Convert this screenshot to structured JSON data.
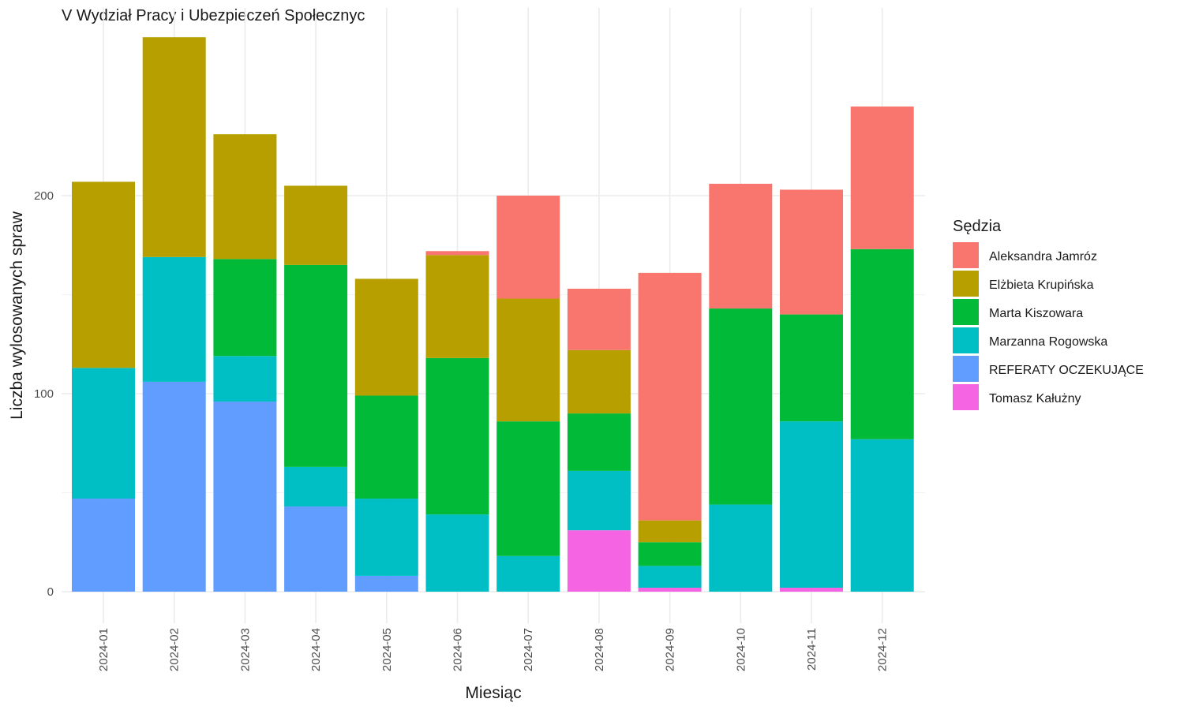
{
  "chart_data": {
    "type": "bar",
    "stacked": true,
    "title": "V Wydział Pracy i Ubezpieczeń Społecznyc",
    "xlabel": "Miesiąc",
    "ylabel": "Liczba wylosowanych spraw",
    "ylim": [
      0,
      290
    ],
    "yticks": [
      0,
      100,
      200
    ],
    "grid": true,
    "legend_position": "right",
    "legend_title": "Sędzia",
    "categories": [
      "2024-01",
      "2024-02",
      "2024-03",
      "2024-04",
      "2024-05",
      "2024-06",
      "2024-07",
      "2024-08",
      "2024-09",
      "2024-10",
      "2024-11",
      "2024-12"
    ],
    "series": [
      {
        "name": "Tomasz Kałużny",
        "color": "#F564E3",
        "values": [
          0,
          0,
          0,
          0,
          0,
          0,
          0,
          31,
          2,
          0,
          2,
          0
        ]
      },
      {
        "name": "REFERATY OCZEKUJĄCE",
        "color": "#619CFF",
        "values": [
          47,
          106,
          96,
          43,
          8,
          0,
          0,
          0,
          0,
          0,
          0,
          0
        ]
      },
      {
        "name": "Marzanna Rogowska",
        "color": "#00BFC4",
        "values": [
          66,
          63,
          23,
          20,
          39,
          39,
          18,
          30,
          11,
          44,
          84,
          77
        ]
      },
      {
        "name": "Marta Kiszowara",
        "color": "#00BA38",
        "values": [
          0,
          0,
          49,
          102,
          52,
          79,
          68,
          29,
          12,
          99,
          54,
          96
        ]
      },
      {
        "name": "Elżbieta Krupińska",
        "color": "#B79F00",
        "values": [
          94,
          111,
          63,
          40,
          59,
          52,
          62,
          32,
          11,
          0,
          0,
          0
        ]
      },
      {
        "name": "Aleksandra Jamróz",
        "color": "#F8766D",
        "values": [
          0,
          0,
          0,
          0,
          0,
          2,
          52,
          31,
          125,
          63,
          63,
          72
        ]
      }
    ],
    "legend_order": [
      "Aleksandra Jamróz",
      "Elżbieta Krupińska",
      "Marta Kiszowara",
      "Marzanna Rogowska",
      "REFERATY OCZEKUJĄCE",
      "Tomasz Kałużny"
    ]
  }
}
